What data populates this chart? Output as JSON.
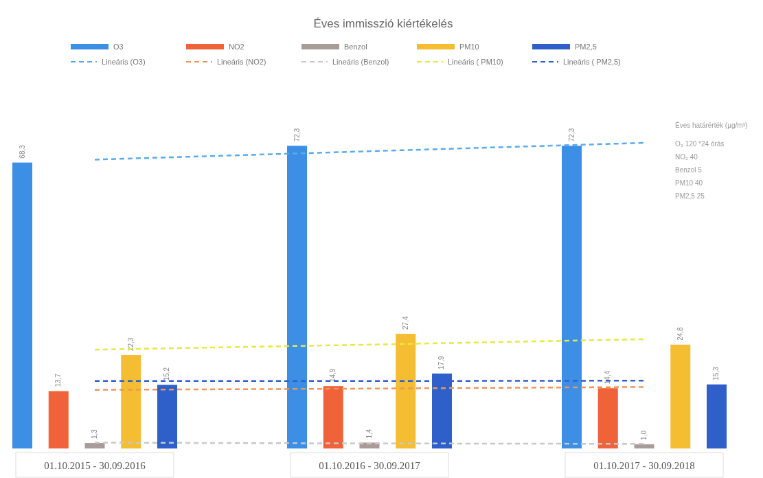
{
  "chart_data": {
    "type": "bar",
    "title": "Éves immisszió kiértékelés",
    "categories": [
      "01.10.2015 - 30.09.2016",
      "01.10.2016 - 30.09.2017",
      "01.10.2017 - 30.09.2018"
    ],
    "series": [
      {
        "name": "O3",
        "color": "#3d8fe6",
        "values": [
          68.3,
          72.3,
          72.3
        ],
        "value_labels": [
          "68,3",
          "72,3",
          "72,3"
        ]
      },
      {
        "name": "NO2",
        "color": "#f0623a",
        "values": [
          13.7,
          14.9,
          14.4
        ],
        "value_labels": [
          "13,7",
          "14,9",
          "14,4"
        ]
      },
      {
        "name": "Benzol",
        "color": "#a89b98",
        "values": [
          1.3,
          1.4,
          1.0
        ],
        "value_labels": [
          "1,3",
          "1,4",
          "1,0"
        ]
      },
      {
        "name": "PM10",
        "color": "#f5bd32",
        "values": [
          22.3,
          27.4,
          24.8
        ],
        "value_labels": [
          "22,3",
          "27,4",
          "24,8"
        ]
      },
      {
        "name": "PM2,5",
        "color": "#2f5fc8",
        "values": [
          15.2,
          17.9,
          15.3
        ],
        "value_labels": [
          "15,2",
          "17,9",
          "15,3"
        ]
      },
      {
        "name": "Lineáris (O3)",
        "type": "line",
        "line_style": "dashed",
        "color": "#5aaaf0",
        "values": [
          69.0,
          71.0,
          73.0
        ]
      },
      {
        "name": "Lineáris (NO2)",
        "type": "line",
        "line_style": "dashed",
        "color": "#f0955a",
        "values": [
          14.0,
          14.3,
          14.7
        ]
      },
      {
        "name": "Lineáris (Benzol)",
        "type": "line",
        "line_style": "dashed",
        "color": "#c8c8c8",
        "values": [
          1.4,
          1.2,
          1.1
        ]
      },
      {
        "name": "Lineáris ( PM10)",
        "type": "line",
        "line_style": "dashed",
        "color": "#e8e840",
        "values": [
          23.6,
          24.8,
          26.1
        ]
      },
      {
        "name": "Lineáris ( PM2,5)",
        "type": "line",
        "line_style": "dashed",
        "color": "#3060d0",
        "values": [
          16.1,
          16.1,
          16.2
        ]
      }
    ],
    "legend": "top",
    "grid": false,
    "annotations": [
      "Éves határérték (µg/m³)",
      "O₃ 120 *24 órás",
      "NO₂ 40",
      "Benzol 5",
      "PM10 40",
      "PM2,5 25"
    ]
  }
}
